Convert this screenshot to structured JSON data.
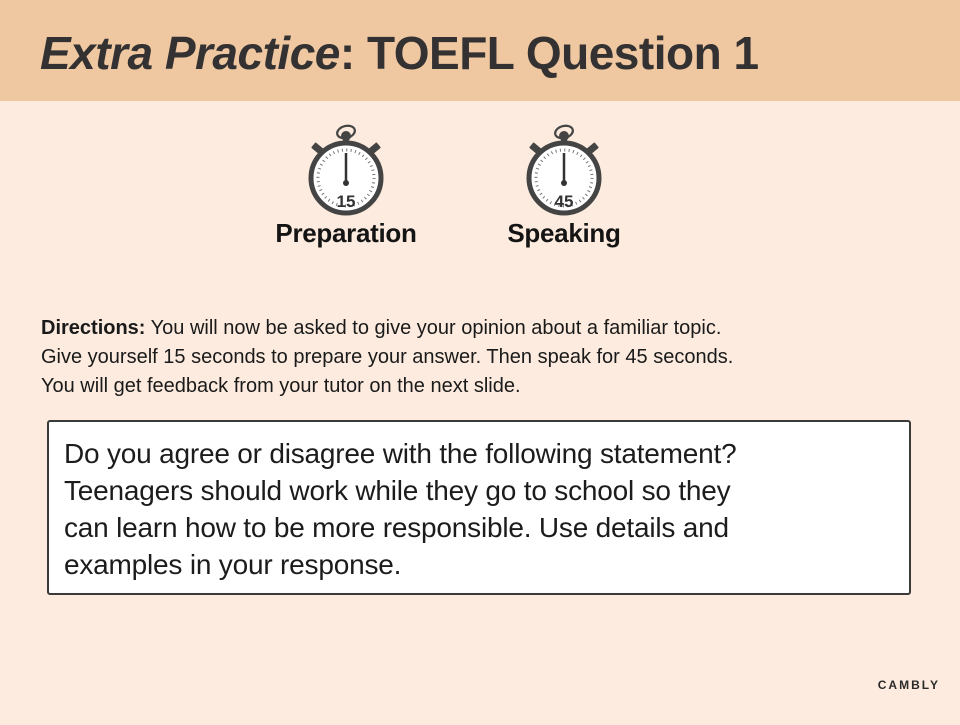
{
  "header": {
    "title_italic": "Extra Practice",
    "title_rest": ": TOEFL Question 1",
    "background": "#efc7a0"
  },
  "timers": [
    {
      "number": "15",
      "label": "Preparation",
      "icon": "stopwatch-icon"
    },
    {
      "number": "45",
      "label": "Speaking",
      "icon": "stopwatch-icon"
    }
  ],
  "directions": {
    "label": "Directions:",
    "line1": " You will now be asked to give your opinion about a familiar topic.",
    "line2": "Give yourself 15 seconds to prepare your answer.  Then speak for 45 seconds.",
    "line3": "You will get feedback from your tutor on the next slide."
  },
  "prompt": {
    "lines": [
      "Do you agree or disagree with the following statement?",
      "Teenagers should work while they go to school so they",
      "can learn how to be more responsible. Use details and",
      "examples in your response."
    ]
  },
  "brand": "CAMBLY",
  "colors": {
    "page_background": "#fcebde",
    "title_bar": "#efc7a0",
    "ink": "#333131"
  }
}
